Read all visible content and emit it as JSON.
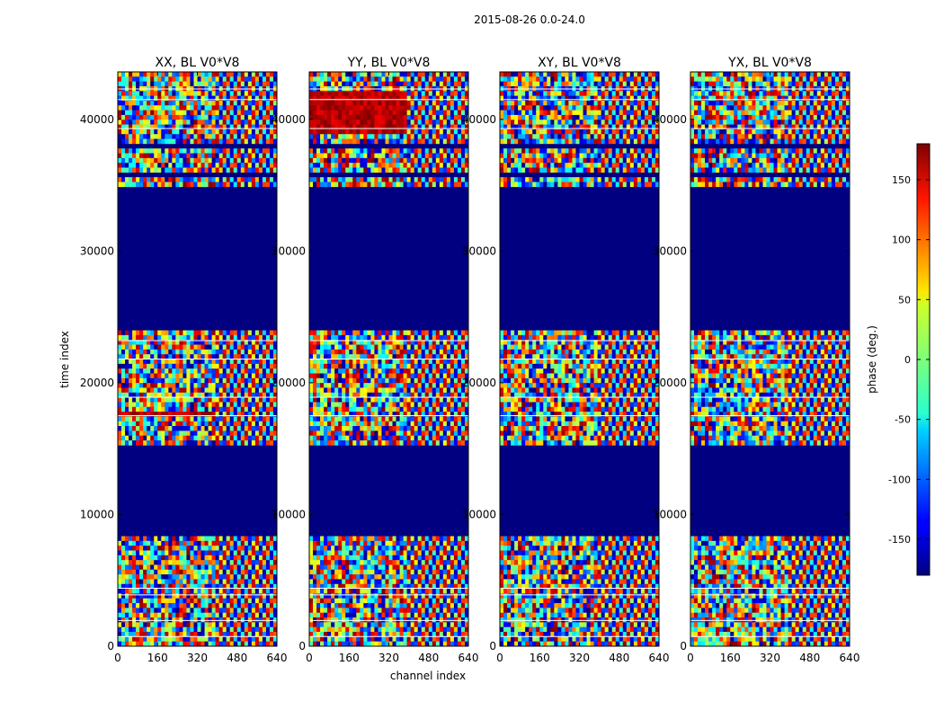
{
  "figure": {
    "suptitle": "2015-08-26 0.0-24.0",
    "xlabel": "channel index",
    "ylabel": "time index"
  },
  "chart_data": {
    "type": "heatmap",
    "colormap": "jet",
    "x": {
      "label": "channel index",
      "range": [
        0,
        640
      ],
      "ticks": [
        0,
        160,
        320,
        480,
        640
      ]
    },
    "y": {
      "label": "time index",
      "range": [
        0,
        43600
      ],
      "ticks": [
        0,
        10000,
        20000,
        30000,
        40000
      ]
    },
    "colorbar": {
      "label": "phase (deg.)",
      "range": [
        -180,
        180
      ],
      "ticks": [
        -150,
        -100,
        -50,
        0,
        50,
        100,
        150
      ]
    },
    "flagged_value": -180,
    "flagged_time_ranges": [
      [
        8200,
        15200
      ],
      [
        24000,
        35000
      ],
      [
        37700,
        38000
      ],
      [
        35700,
        35800
      ]
    ],
    "panels": [
      {
        "title": "XX, BL V0*V8",
        "pattern": "noisy-phase",
        "red_band": [
          17300,
          17800
        ]
      },
      {
        "title": "YY, BL V0*V8",
        "pattern": "noisy-phase",
        "red_band": [
          39000,
          42000
        ]
      },
      {
        "title": "XY, BL V0*V8",
        "pattern": "noisy-phase",
        "red_band": null
      },
      {
        "title": "YX, BL V0*V8",
        "pattern": "noisy-phase",
        "red_band": null
      }
    ]
  }
}
